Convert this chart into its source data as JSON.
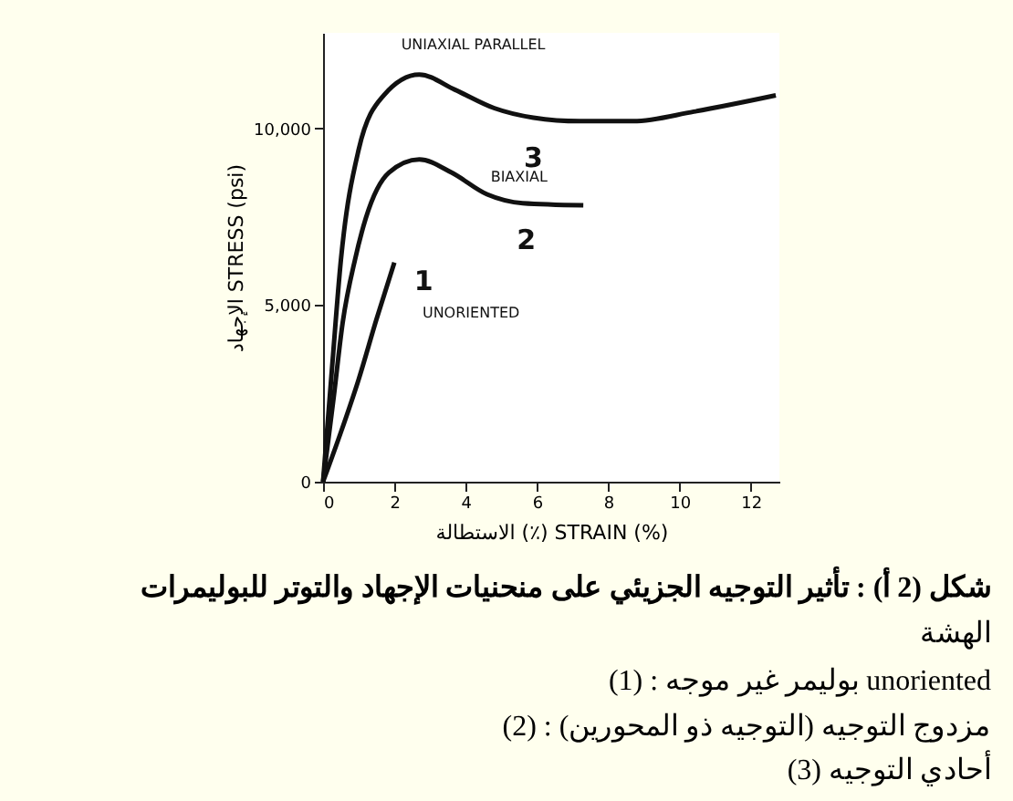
{
  "chart_data": {
    "type": "line",
    "xlabel": "الاستطالة (٪) STRAIN (%)",
    "ylabel": "الإجهاد STRESS (psi)",
    "xlim": [
      0,
      12.8
    ],
    "xticks": [
      0,
      2,
      4,
      6,
      8,
      10,
      12
    ],
    "ylim": [
      0,
      12700
    ],
    "yticks": [
      0,
      {
        "value": 5000,
        "label": "5,000"
      },
      {
        "value": 10000,
        "label": "10,000"
      }
    ],
    "grid": false,
    "marker": "none",
    "line_style": "solid",
    "series": [
      {
        "name": "UNORIENTED",
        "color": "#111111",
        "x": [
          0,
          0.5,
          1.0,
          1.5,
          2.0
        ],
        "values": [
          0,
          1400,
          2900,
          4600,
          6200
        ]
      },
      {
        "name": "BIAXIAL",
        "color": "#111111",
        "x": [
          0,
          0.3,
          0.55,
          0.9,
          1.2,
          1.85,
          2.7,
          3.6,
          4.6,
          5.6,
          7.3
        ],
        "values": [
          0,
          2400,
          4500,
          6300,
          7460,
          8750,
          9120,
          8750,
          8130,
          7880,
          7820
        ]
      },
      {
        "name": "UNIAXIAL PARALLEL",
        "color": "#111111",
        "x": [
          0,
          0.25,
          0.5,
          1.0,
          1.7,
          2.7,
          3.7,
          4.8,
          5.9,
          7.2,
          8.7,
          10.4,
          12.7
        ],
        "values": [
          0,
          3200,
          6270,
          9400,
          10930,
          11520,
          11090,
          10570,
          10300,
          10200,
          10200,
          10470,
          10930
        ]
      }
    ],
    "annotations": [
      "1",
      "2",
      "3",
      "شكل (2 أ) : تأثير التوجيه الجزيئي على منحنيات الإجهاد والتوتر للبوليمرات",
      "الهشة",
      "(1) : بوليمر غير موجه  unoriented",
      "(2) : مزدوج التوجيه (التوجيه ذو المحورين)",
      "(3) أحادي التوجيه"
    ]
  }
}
